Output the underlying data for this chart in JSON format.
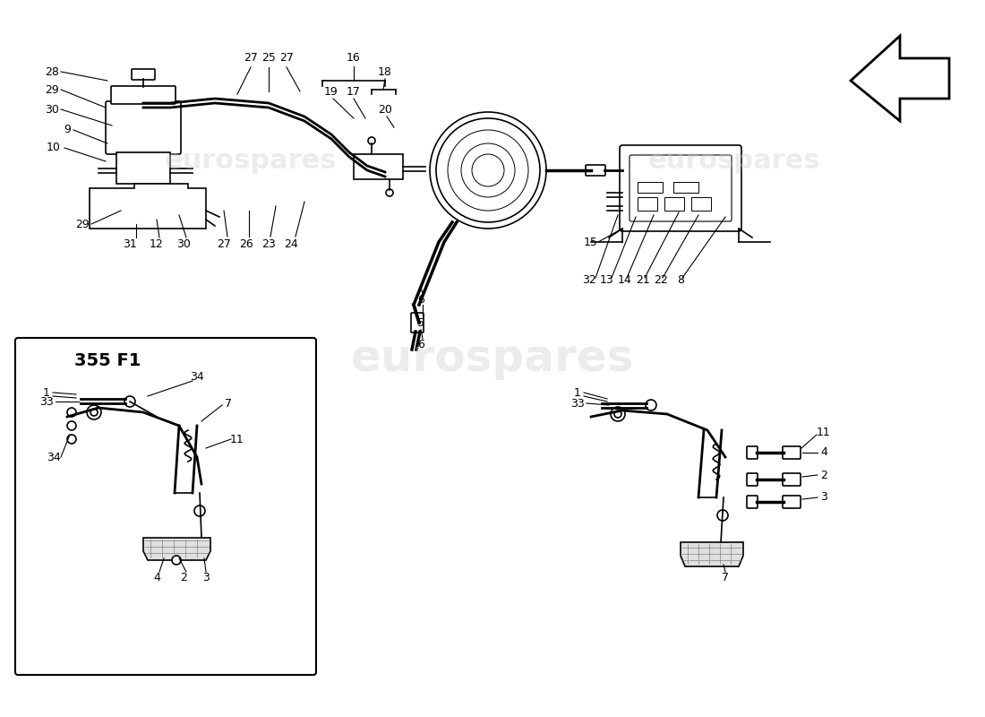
{
  "bg_color": "#ffffff",
  "line_color": "#000000",
  "watermark_color": "#c8c8c8",
  "watermark_text": "eurospares",
  "title": "",
  "fig_width": 11.0,
  "fig_height": 8.0,
  "dpi": 100
}
